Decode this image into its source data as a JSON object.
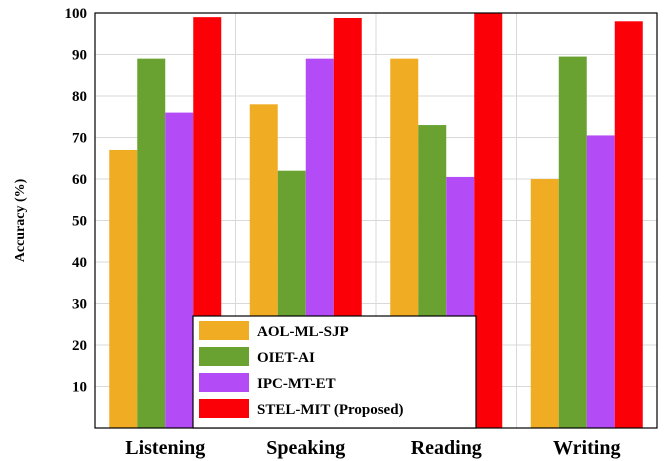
{
  "chart_data": {
    "type": "bar",
    "title": "",
    "xlabel": "",
    "ylabel": "Accuracy (%)",
    "ylim": [
      0,
      100
    ],
    "yticks": [
      10,
      20,
      30,
      40,
      50,
      60,
      70,
      80,
      90,
      100
    ],
    "categories": [
      "Listening",
      "Speaking",
      "Reading",
      "Writing"
    ],
    "series": [
      {
        "name": "AOL-ML-SJP",
        "color": "#f0ac22",
        "values": [
          67,
          78,
          89,
          60
        ]
      },
      {
        "name": "OIET-AI",
        "color": "#6aa231",
        "values": [
          89,
          62,
          73,
          89.5
        ]
      },
      {
        "name": "IPC-MT-ET",
        "color": "#b34cf7",
        "values": [
          76,
          89,
          60.5,
          70.5
        ]
      },
      {
        "name": "STEL-MIT (Proposed)",
        "color": "#fb0007",
        "values": [
          99,
          98.8,
          100,
          98
        ]
      }
    ],
    "grid": true,
    "legend_position": "bottom-center"
  }
}
